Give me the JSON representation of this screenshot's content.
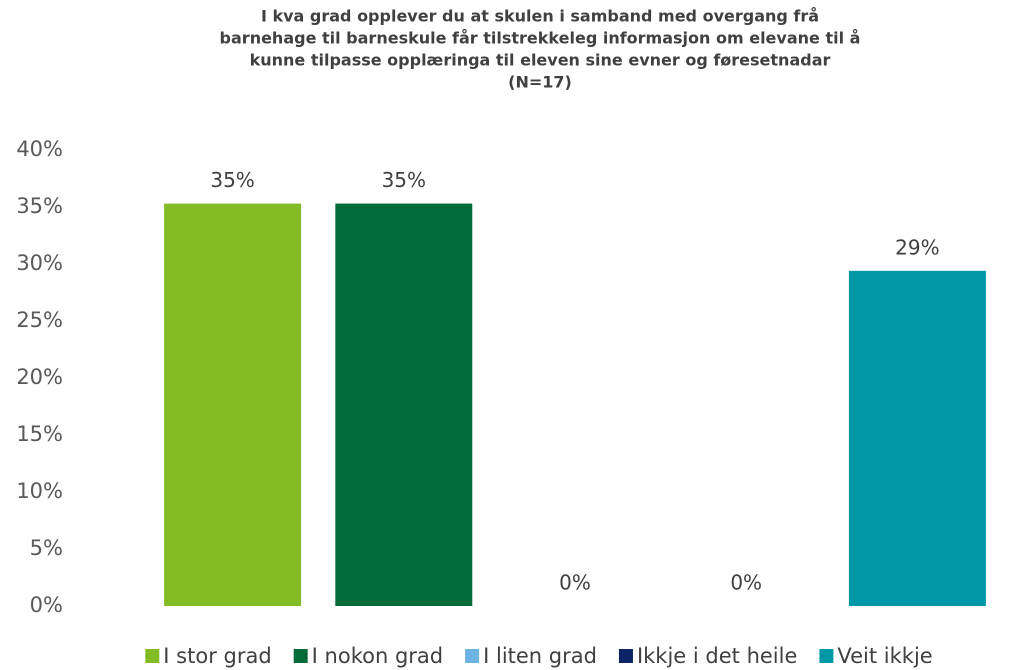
{
  "chart_data": {
    "type": "bar",
    "title": [
      "I kva grad opplever du at skulen i samband med overgang frå",
      "barnehage til barneskule får tilstrekkeleg informasjon om elevane til å",
      "kunne tilpasse opplæringa til eleven sine evner og føresetnadar",
      "(N=17)"
    ],
    "series": [
      {
        "name": "I stor grad",
        "color": "#84bc26",
        "values": [
          35.3
        ],
        "value_labels": [
          "35%"
        ]
      },
      {
        "name": "I nokon grad",
        "color": "#036b3a",
        "values": [
          35.3
        ],
        "value_labels": [
          "35%"
        ]
      },
      {
        "name": "I liten grad",
        "color": "#6cb4e4",
        "values": [
          0
        ],
        "value_labels": [
          "0%"
        ]
      },
      {
        "name": "Ikkje i det heile",
        "color": "#0a2466",
        "values": [
          0
        ],
        "value_labels": [
          "0%"
        ]
      },
      {
        "name": "Veit ikkje",
        "color": "#0097a7",
        "values": [
          29.4
        ],
        "value_labels": [
          "29%"
        ]
      }
    ],
    "ylim": [
      0,
      40
    ],
    "yticks": [
      {
        "value": 0,
        "label": "0%"
      },
      {
        "value": 5,
        "label": "5%"
      },
      {
        "value": 10,
        "label": "10%"
      },
      {
        "value": 15,
        "label": "15%"
      },
      {
        "value": 20,
        "label": "20%"
      },
      {
        "value": 25,
        "label": "25%"
      },
      {
        "value": 30,
        "label": "30%"
      },
      {
        "value": 35,
        "label": "35%"
      },
      {
        "value": 40,
        "label": "40%"
      }
    ],
    "grid": false,
    "legend": "bottom"
  }
}
